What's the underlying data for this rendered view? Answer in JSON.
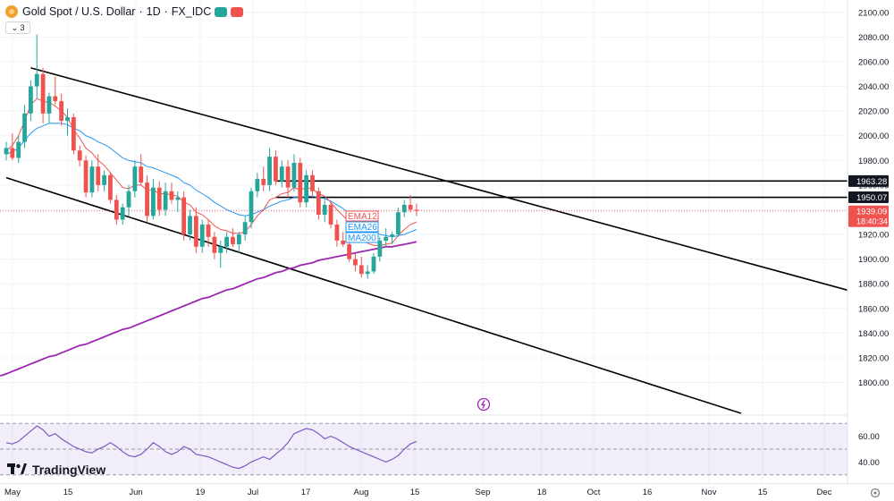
{
  "header": {
    "symbol": "Gold Spot / U.S. Dollar",
    "interval": "1D",
    "source": "FX_IDC",
    "collapse_count": "3"
  },
  "logo_text": "TradingView",
  "colors": {
    "up": "#26a69a",
    "down": "#ef5350",
    "ema12": "#ef5350",
    "ema26": "#2196f3",
    "ma200": "#9c27b0",
    "rsi": "#7e57c2",
    "channel": "#000000"
  },
  "chart_data": {
    "type": "candlestick",
    "price_axis": {
      "range": [
        1775,
        2110
      ],
      "ticks": [
        2100,
        2080,
        2060,
        2040,
        2020,
        2000,
        1980,
        1960,
        1940,
        1920,
        1900,
        1880,
        1860,
        1840,
        1820,
        1800
      ]
    },
    "time_axis": {
      "labels": [
        "May",
        "15",
        "Jun",
        "19",
        "Jul",
        "17",
        "Aug",
        "15",
        "Sep",
        "18",
        "Oct",
        "16",
        "Nov",
        "15",
        "Dec"
      ]
    },
    "candles": [
      {
        "o": 1985,
        "h": 1995,
        "l": 1980,
        "c": 1990
      },
      {
        "o": 1990,
        "h": 2002,
        "l": 1980,
        "c": 1982
      },
      {
        "o": 1982,
        "h": 2000,
        "l": 1978,
        "c": 1995
      },
      {
        "o": 1995,
        "h": 2025,
        "l": 1990,
        "c": 2018
      },
      {
        "o": 2018,
        "h": 2045,
        "l": 2012,
        "c": 2040
      },
      {
        "o": 2040,
        "h": 2082,
        "l": 2030,
        "c": 2050
      },
      {
        "o": 2050,
        "h": 2055,
        "l": 2010,
        "c": 2018
      },
      {
        "o": 2018,
        "h": 2035,
        "l": 2010,
        "c": 2032
      },
      {
        "o": 2032,
        "h": 2048,
        "l": 2025,
        "c": 2028
      },
      {
        "o": 2028,
        "h": 2034,
        "l": 2008,
        "c": 2012
      },
      {
        "o": 2012,
        "h": 2022,
        "l": 2000,
        "c": 2015
      },
      {
        "o": 2015,
        "h": 2018,
        "l": 1985,
        "c": 1988
      },
      {
        "o": 1988,
        "h": 1992,
        "l": 1975,
        "c": 1980
      },
      {
        "o": 1980,
        "h": 1984,
        "l": 1950,
        "c": 1954
      },
      {
        "o": 1954,
        "h": 1980,
        "l": 1950,
        "c": 1975
      },
      {
        "o": 1975,
        "h": 1985,
        "l": 1955,
        "c": 1960
      },
      {
        "o": 1960,
        "h": 1972,
        "l": 1955,
        "c": 1968
      },
      {
        "o": 1968,
        "h": 1970,
        "l": 1945,
        "c": 1948
      },
      {
        "o": 1948,
        "h": 1952,
        "l": 1928,
        "c": 1932
      },
      {
        "o": 1932,
        "h": 1945,
        "l": 1928,
        "c": 1942
      },
      {
        "o": 1942,
        "h": 1960,
        "l": 1935,
        "c": 1955
      },
      {
        "o": 1955,
        "h": 1980,
        "l": 1950,
        "c": 1975
      },
      {
        "o": 1975,
        "h": 1985,
        "l": 1960,
        "c": 1962
      },
      {
        "o": 1962,
        "h": 1968,
        "l": 1930,
        "c": 1935
      },
      {
        "o": 1935,
        "h": 1965,
        "l": 1932,
        "c": 1958
      },
      {
        "o": 1958,
        "h": 1963,
        "l": 1935,
        "c": 1940
      },
      {
        "o": 1940,
        "h": 1962,
        "l": 1935,
        "c": 1955
      },
      {
        "o": 1955,
        "h": 1962,
        "l": 1945,
        "c": 1948
      },
      {
        "o": 1948,
        "h": 1955,
        "l": 1938,
        "c": 1950
      },
      {
        "o": 1950,
        "h": 1955,
        "l": 1915,
        "c": 1920
      },
      {
        "o": 1920,
        "h": 1940,
        "l": 1915,
        "c": 1935
      },
      {
        "o": 1935,
        "h": 1942,
        "l": 1905,
        "c": 1910
      },
      {
        "o": 1910,
        "h": 1932,
        "l": 1905,
        "c": 1928
      },
      {
        "o": 1928,
        "h": 1932,
        "l": 1910,
        "c": 1918
      },
      {
        "o": 1918,
        "h": 1922,
        "l": 1900,
        "c": 1905
      },
      {
        "o": 1905,
        "h": 1915,
        "l": 1893,
        "c": 1910
      },
      {
        "o": 1910,
        "h": 1922,
        "l": 1905,
        "c": 1918
      },
      {
        "o": 1918,
        "h": 1925,
        "l": 1910,
        "c": 1912
      },
      {
        "o": 1912,
        "h": 1922,
        "l": 1905,
        "c": 1920
      },
      {
        "o": 1920,
        "h": 1935,
        "l": 1915,
        "c": 1930
      },
      {
        "o": 1930,
        "h": 1958,
        "l": 1925,
        "c": 1955
      },
      {
        "o": 1955,
        "h": 1970,
        "l": 1950,
        "c": 1965
      },
      {
        "o": 1965,
        "h": 1975,
        "l": 1955,
        "c": 1960
      },
      {
        "o": 1960,
        "h": 1990,
        "l": 1955,
        "c": 1983
      },
      {
        "o": 1983,
        "h": 1988,
        "l": 1960,
        "c": 1963
      },
      {
        "o": 1963,
        "h": 1980,
        "l": 1958,
        "c": 1975
      },
      {
        "o": 1975,
        "h": 1980,
        "l": 1950,
        "c": 1958
      },
      {
        "o": 1958,
        "h": 1985,
        "l": 1955,
        "c": 1978
      },
      {
        "o": 1978,
        "h": 1982,
        "l": 1942,
        "c": 1946
      },
      {
        "o": 1946,
        "h": 1972,
        "l": 1942,
        "c": 1968
      },
      {
        "o": 1968,
        "h": 1972,
        "l": 1950,
        "c": 1955
      },
      {
        "o": 1955,
        "h": 1958,
        "l": 1932,
        "c": 1936
      },
      {
        "o": 1936,
        "h": 1948,
        "l": 1930,
        "c": 1944
      },
      {
        "o": 1944,
        "h": 1946,
        "l": 1925,
        "c": 1928
      },
      {
        "o": 1928,
        "h": 1932,
        "l": 1910,
        "c": 1915
      },
      {
        "o": 1915,
        "h": 1922,
        "l": 1910,
        "c": 1912
      },
      {
        "o": 1912,
        "h": 1920,
        "l": 1898,
        "c": 1900
      },
      {
        "o": 1900,
        "h": 1905,
        "l": 1890,
        "c": 1895
      },
      {
        "o": 1895,
        "h": 1902,
        "l": 1885,
        "c": 1888
      },
      {
        "o": 1888,
        "h": 1895,
        "l": 1884,
        "c": 1890
      },
      {
        "o": 1890,
        "h": 1905,
        "l": 1888,
        "c": 1902
      },
      {
        "o": 1902,
        "h": 1918,
        "l": 1898,
        "c": 1915
      },
      {
        "o": 1915,
        "h": 1925,
        "l": 1910,
        "c": 1918
      },
      {
        "o": 1918,
        "h": 1922,
        "l": 1912,
        "c": 1920
      },
      {
        "o": 1920,
        "h": 1942,
        "l": 1918,
        "c": 1938
      },
      {
        "o": 1938,
        "h": 1948,
        "l": 1934,
        "c": 1944
      },
      {
        "o": 1944,
        "h": 1952,
        "l": 1938,
        "c": 1940
      },
      {
        "o": 1940,
        "h": 1945,
        "l": 1935,
        "c": 1939.09
      }
    ],
    "ema12": [
      1988,
      1992,
      2000,
      2012,
      2025,
      2030,
      2028,
      2027,
      2024,
      2020,
      2015,
      2005,
      1998,
      1990,
      1986,
      1980,
      1976,
      1970,
      1964,
      1958,
      1957,
      1960,
      1960,
      1956,
      1956,
      1953,
      1953,
      1952,
      1951,
      1946,
      1944,
      1938,
      1936,
      1932,
      1927,
      1924,
      1923,
      1921,
      1921,
      1922,
      1928,
      1935,
      1940,
      1948,
      1950,
      1953,
      1954,
      1958,
      1956,
      1958,
      1957,
      1953,
      1951,
      1946,
      1940,
      1935,
      1930,
      1924,
      1918,
      1913,
      1911,
      1911,
      1912,
      1913,
      1919,
      1924,
      1928,
      1930
    ],
    "ema26": [
      1985,
      1987,
      1990,
      1996,
      2002,
      2006,
      2008,
      2010,
      2010,
      2010,
      2009,
      2006,
      2004,
      2000,
      1998,
      1995,
      1993,
      1990,
      1986,
      1982,
      1980,
      1979,
      1978,
      1975,
      1974,
      1972,
      1970,
      1968,
      1966,
      1962,
      1960,
      1956,
      1953,
      1950,
      1946,
      1943,
      1940,
      1938,
      1936,
      1935,
      1936,
      1938,
      1940,
      1943,
      1945,
      1947,
      1948,
      1950,
      1950,
      1951,
      1951,
      1950,
      1949,
      1947,
      1944,
      1941,
      1937,
      1933,
      1929,
      1925,
      1922,
      1920,
      1919,
      1918,
      1919,
      1920,
      1922,
      1924
    ],
    "ma200": [
      1807,
      1809,
      1811,
      1813,
      1815,
      1817,
      1819,
      1821,
      1822,
      1824,
      1826,
      1828,
      1830,
      1831,
      1833,
      1835,
      1837,
      1839,
      1841,
      1843,
      1844,
      1846,
      1848,
      1850,
      1852,
      1854,
      1856,
      1858,
      1860,
      1862,
      1864,
      1866,
      1868,
      1869,
      1871,
      1873,
      1875,
      1876,
      1878,
      1880,
      1882,
      1884,
      1885,
      1887,
      1889,
      1890,
      1892,
      1893,
      1895,
      1896,
      1897,
      1899,
      1900,
      1901,
      1902,
      1903,
      1904,
      1905,
      1906,
      1907,
      1908,
      1909,
      1910,
      1910,
      1911,
      1912,
      1913,
      1914
    ],
    "legend": [
      "EMA12",
      "EMA26",
      "MA200"
    ],
    "channel_lines": [
      {
        "x_start_bar": 4,
        "y_start": 2055,
        "x_end_bar": 158,
        "y_end": 1847
      },
      {
        "x_start_bar": 0,
        "y_start": 1966,
        "x_end_bar": 120,
        "y_end": 1775
      }
    ],
    "horizontal_levels": [
      {
        "price": 1963.28,
        "label": "1963.28",
        "start_bar": 44
      },
      {
        "price": 1950.07,
        "label": "1950.07",
        "start_bar": 44
      }
    ],
    "last_price": {
      "value": 1939.09,
      "label": "1939.09",
      "countdown": "18:40:34"
    },
    "rsi": {
      "levels": [
        70,
        50,
        30
      ],
      "tick_labels": [
        "60.00",
        "40.00"
      ],
      "range": [
        25,
        75
      ],
      "values": [
        55,
        54,
        56,
        60,
        64,
        68,
        65,
        60,
        62,
        58,
        55,
        52,
        50,
        48,
        47,
        50,
        52,
        55,
        52,
        48,
        45,
        44,
        46,
        50,
        55,
        52,
        48,
        46,
        48,
        52,
        50,
        46,
        45,
        44,
        42,
        40,
        38,
        36,
        35,
        37,
        40,
        42,
        44,
        42,
        46,
        50,
        55,
        62,
        64,
        66,
        65,
        62,
        58,
        60,
        58,
        55,
        52,
        50,
        48,
        46,
        44,
        42,
        40,
        42,
        45,
        50,
        54,
        56
      ]
    }
  }
}
